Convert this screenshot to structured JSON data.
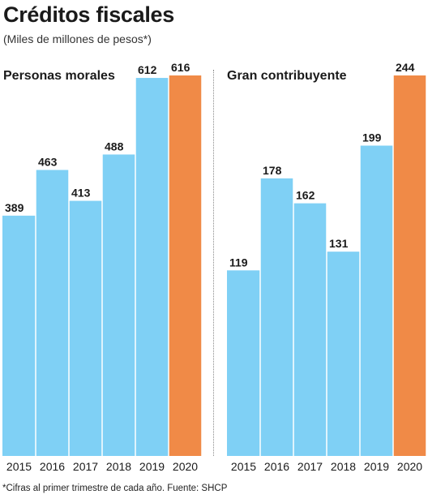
{
  "header": {
    "title": "Créditos fiscales",
    "subtitle": "(Miles de millones de pesos*)"
  },
  "footnote": "*Cifras al primer trimestre de cada año. Fuente: SHCP",
  "colors": {
    "bar": "#7fd0f5",
    "highlight": "#f08a47",
    "text": "#1a1a1a"
  },
  "chart_data": [
    {
      "type": "bar",
      "title": "Personas morales",
      "categories": [
        "2015",
        "2016",
        "2017",
        "2018",
        "2019",
        "2020"
      ],
      "values": [
        389,
        463,
        413,
        488,
        612,
        616
      ],
      "highlight_index": 5,
      "ylim": [
        0,
        616
      ]
    },
    {
      "type": "bar",
      "title": "Gran contribuyente",
      "categories": [
        "2015",
        "2016",
        "2017",
        "2018",
        "2019",
        "2020"
      ],
      "values": [
        119,
        178,
        162,
        131,
        199,
        244
      ],
      "highlight_index": 5,
      "ylim": [
        0,
        244
      ]
    }
  ]
}
